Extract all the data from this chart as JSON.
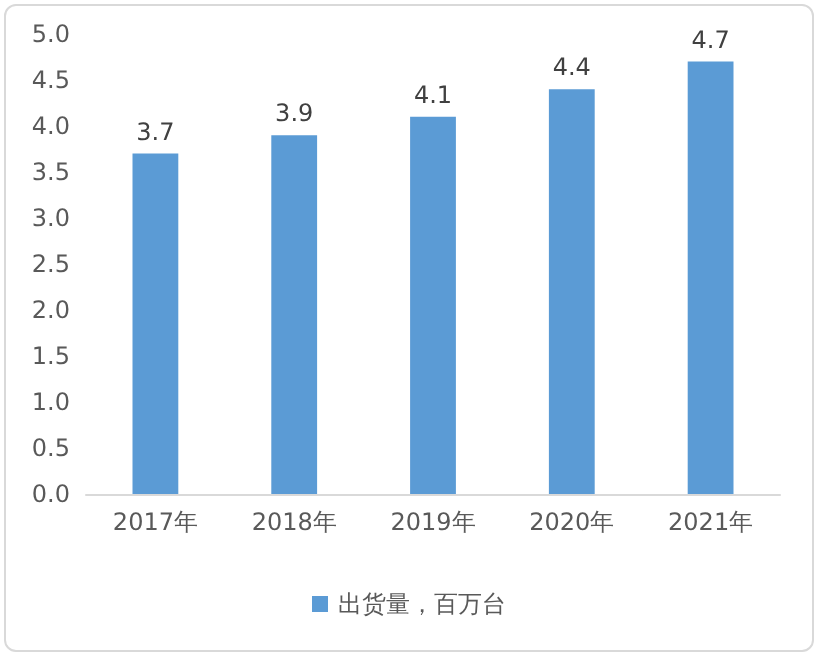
{
  "chart_data": {
    "type": "bar",
    "categories": [
      "2017年",
      "2018年",
      "2019年",
      "2020年",
      "2021年"
    ],
    "series": [
      {
        "name": "出货量，百万台",
        "color": "#5b9bd5",
        "values": [
          3.7,
          3.9,
          4.1,
          4.4,
          4.7
        ]
      }
    ],
    "ylim": [
      0,
      5
    ],
    "yticks": [
      {
        "value": 0,
        "label": "0.0"
      },
      0.5,
      {
        "value": 1,
        "label": "1.0"
      },
      1.5,
      {
        "value": 2,
        "label": "2.0"
      },
      2.5,
      {
        "value": 3,
        "label": "3.0"
      },
      3.5,
      {
        "value": 4,
        "label": "4.0"
      },
      4.5,
      {
        "value": 5,
        "label": "5.0"
      }
    ],
    "data_labels": true,
    "grid": false,
    "legend": "bottom"
  }
}
